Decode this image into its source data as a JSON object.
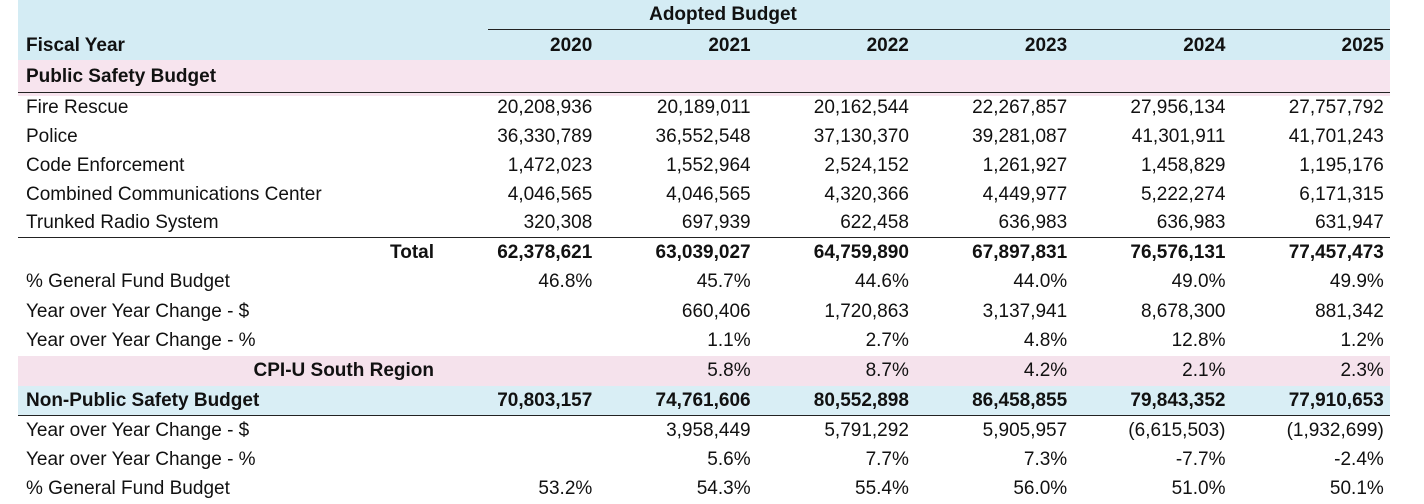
{
  "table": {
    "caption": "Adopted Budget",
    "header": {
      "label": "Fiscal Year",
      "years": [
        "2020",
        "2021",
        "2022",
        "2023",
        "2024",
        "2025"
      ]
    },
    "section_public": "Public Safety Budget",
    "rows": [
      {
        "label": "Fire Rescue",
        "values": [
          "20,208,936",
          "20,189,011",
          "20,162,544",
          "22,267,857",
          "27,956,134",
          "27,757,792"
        ]
      },
      {
        "label": "Police",
        "values": [
          "36,330,789",
          "36,552,548",
          "37,130,370",
          "39,281,087",
          "41,301,911",
          "41,701,243"
        ]
      },
      {
        "label": "Code Enforcement",
        "values": [
          "1,472,023",
          "1,552,964",
          "2,524,152",
          "1,261,927",
          "1,458,829",
          "1,195,176"
        ]
      },
      {
        "label": "Combined Communications Center",
        "values": [
          "4,046,565",
          "4,046,565",
          "4,320,366",
          "4,449,977",
          "5,222,274",
          "6,171,315"
        ]
      },
      {
        "label": "Trunked Radio System",
        "values": [
          "320,308",
          "697,939",
          "622,458",
          "636,983",
          "636,983",
          "631,947"
        ]
      },
      {
        "label": "Total",
        "values": [
          "62,378,621",
          "63,039,027",
          "64,759,890",
          "67,897,831",
          "76,576,131",
          "77,457,473"
        ]
      },
      {
        "label": "% General Fund Budget",
        "values": [
          "46.8%",
          "45.7%",
          "44.6%",
          "44.0%",
          "49.0%",
          "49.9%"
        ]
      },
      {
        "label": "Year over Year Change - $",
        "values": [
          "",
          "660,406",
          "1,720,863",
          "3,137,941",
          "8,678,300",
          "881,342"
        ]
      },
      {
        "label": "Year over Year Change - %",
        "values": [
          "",
          "1.1%",
          "2.7%",
          "4.8%",
          "12.8%",
          "1.2%"
        ]
      },
      {
        "label": "CPI-U South Region",
        "values": [
          "",
          "5.8%",
          "8.7%",
          "4.2%",
          "2.1%",
          "2.3%"
        ]
      },
      {
        "label": "Non-Public Safety Budget",
        "values": [
          "70,803,157",
          "74,761,606",
          "80,552,898",
          "86,458,855",
          "79,843,352",
          "77,910,653"
        ]
      },
      {
        "label": "Year over Year Change - $",
        "values": [
          "",
          "3,958,449",
          "5,791,292",
          "5,905,957",
          "(6,615,503)",
          "(1,932,699)"
        ]
      },
      {
        "label": "Year over Year Change - %",
        "values": [
          "",
          "5.6%",
          "7.7%",
          "7.3%",
          "-7.7%",
          "-2.4%"
        ]
      },
      {
        "label": "% General Fund Budget",
        "values": [
          "53.2%",
          "54.3%",
          "55.4%",
          "56.0%",
          "51.0%",
          "50.1%"
        ]
      }
    ]
  }
}
